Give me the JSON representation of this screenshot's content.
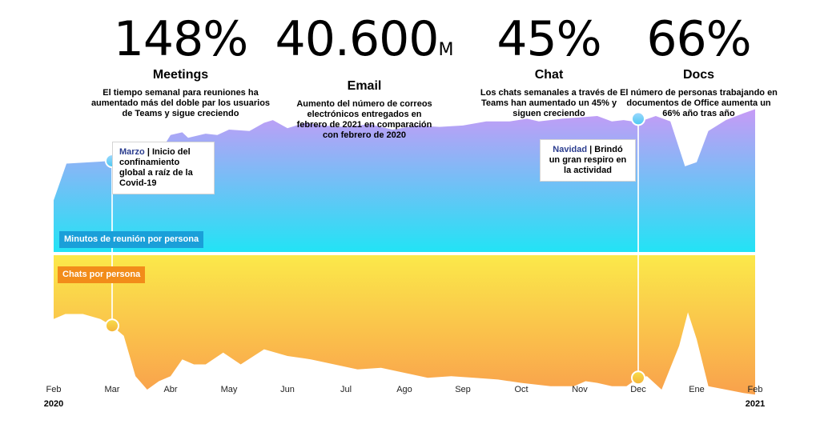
{
  "stats": [
    {
      "value": "148%",
      "unit": "",
      "label": "Meetings",
      "desc": "El tiempo semanal para reuniones ha aumentado más del doble par los usuarios de Teams y sigue creciendo"
    },
    {
      "value": "40.600",
      "unit": "M",
      "label": "Email",
      "desc": "Aumento del número de correos electrónicos entregados en febrero de 2021 en comparación con febrero de 2020"
    },
    {
      "value": "45%",
      "unit": "",
      "label": "Chat",
      "desc": "Los chats semanales a través de Teams han aumentado un 45% y siguen creciendo"
    },
    {
      "value": "66%",
      "unit": "",
      "label": "Docs",
      "desc": "El número de personas trabajando en documentos de Office aumenta un 66% año tras año"
    }
  ],
  "callouts": {
    "march": {
      "highlight": "Marzo",
      "text": " | Inicio del confinamiento global a raíz de la Covid-19"
    },
    "christmas": {
      "highlight": "Navidad",
      "text": " | Brindó un gran respiro en la actividad"
    }
  },
  "colors": {
    "meetings_top": "#c79af6",
    "meetings_bottom": "#22e3f5",
    "chats_top": "#fbe94a",
    "chats_bottom": "#f9a14c",
    "meetings_label_bg": "#1a9fd9",
    "chats_label_bg": "#f28c1a",
    "highlight": "#2c3e8f"
  },
  "chart_data": {
    "type": "area",
    "x_ticks": [
      "Feb",
      "Mar",
      "Abr",
      "May",
      "Jun",
      "Jul",
      "Ago",
      "Sep",
      "Oct",
      "Nov",
      "Dec",
      "Ene",
      "Feb"
    ],
    "x_years": {
      "start": "2020",
      "end": "2021"
    },
    "series": [
      {
        "name": "Minutos de reunión por persona",
        "x": [
          0,
          0.22,
          1.0,
          1.8,
          2.0,
          2.2,
          2.3,
          2.6,
          2.8,
          3.0,
          3.35,
          3.6,
          3.75,
          4.0,
          4.3,
          4.6,
          5.0,
          5.4,
          5.8,
          6.2,
          6.6,
          7.0,
          7.4,
          7.8,
          8.1,
          8.3,
          8.7,
          9.0,
          9.3,
          9.55,
          9.75,
          9.9,
          10.0,
          10.1,
          10.3,
          10.55,
          10.8,
          11.0,
          11.2,
          11.5,
          11.8,
          12.0
        ],
        "values": [
          0.38,
          0.65,
          0.67,
          0.72,
          0.86,
          0.88,
          0.84,
          0.87,
          0.86,
          0.9,
          0.89,
          0.95,
          0.97,
          0.91,
          0.95,
          0.93,
          0.92,
          0.94,
          0.9,
          0.93,
          0.92,
          0.93,
          0.96,
          0.96,
          0.98,
          0.96,
          0.98,
          0.99,
          1.0,
          0.96,
          0.97,
          0.96,
          0.98,
          0.97,
          1.0,
          0.96,
          0.63,
          0.66,
          0.89,
          0.97,
          1.02,
          1.05
        ]
      },
      {
        "name": "Chats por persona",
        "x": [
          0,
          0.2,
          0.5,
          0.8,
          1.0,
          1.2,
          1.4,
          1.6,
          1.8,
          2.0,
          2.2,
          2.4,
          2.6,
          2.9,
          3.2,
          3.6,
          4.0,
          4.4,
          4.8,
          5.2,
          5.6,
          6.0,
          6.4,
          6.8,
          7.2,
          7.6,
          8.0,
          8.5,
          8.9,
          9.1,
          9.3,
          9.55,
          9.8,
          10.0,
          10.15,
          10.4,
          10.7,
          10.85,
          11.0,
          11.2,
          11.5,
          11.8,
          12.0
        ],
        "values": [
          0.62,
          0.65,
          0.65,
          0.62,
          0.58,
          0.52,
          0.28,
          0.2,
          0.25,
          0.28,
          0.38,
          0.35,
          0.35,
          0.42,
          0.35,
          0.44,
          0.4,
          0.38,
          0.35,
          0.32,
          0.33,
          0.3,
          0.27,
          0.28,
          0.27,
          0.26,
          0.24,
          0.22,
          0.22,
          0.25,
          0.24,
          0.22,
          0.22,
          0.27,
          0.28,
          0.2,
          0.46,
          0.66,
          0.5,
          0.22,
          0.2,
          0.18,
          0.17
        ]
      }
    ],
    "annotations": [
      {
        "x": 1.0,
        "label": "Marzo"
      },
      {
        "x": 10.0,
        "label": "Navidad"
      }
    ]
  }
}
